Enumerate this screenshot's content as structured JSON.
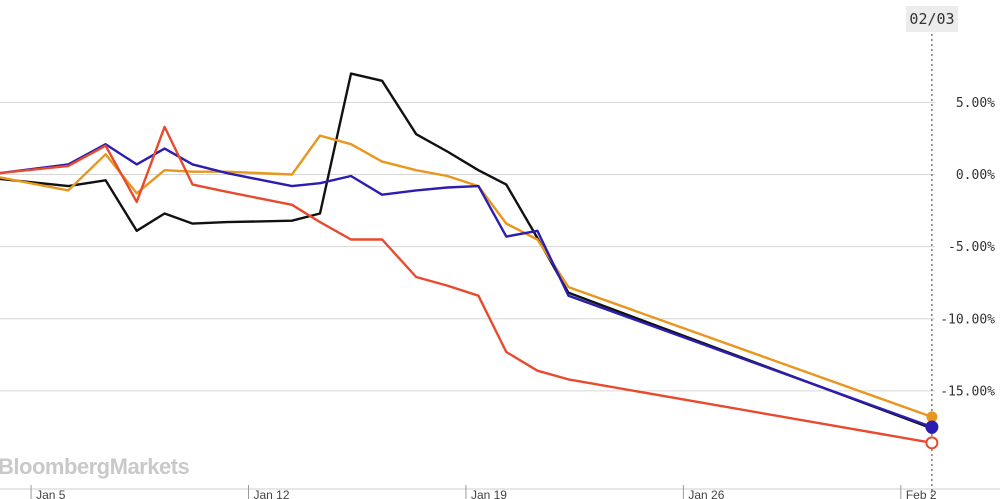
{
  "brand": {
    "logo_text": "BloombergMarkets"
  },
  "date_badge": "02/03",
  "chart_data": {
    "type": "line",
    "y_axis": {
      "ticks": [
        5,
        0,
        -5,
        -10,
        -15
      ],
      "tick_labels": [
        "5.00%",
        "0.00%",
        "-5.00%",
        "-10.00%",
        "-15.00%"
      ],
      "ylim": [
        -21.8,
        12.1
      ],
      "position": "right",
      "grid": true
    },
    "x_axis": {
      "tick_labels": [
        "Jan 5",
        "Jan 12",
        "Jan 19",
        "Jan 26",
        "Feb 2"
      ],
      "tick_positions": [
        5,
        12,
        19,
        26,
        33
      ],
      "xlim": [
        4,
        34.1
      ]
    },
    "x": [
      4,
      6.2,
      7.4,
      8.4,
      9.3,
      10.2,
      11.3,
      13.4,
      14.3,
      15.3,
      16.3,
      17.4,
      18.4,
      19.4,
      20.3,
      21.3,
      22.3,
      34
    ],
    "series": [
      {
        "color": "#111111",
        "values": [
          -0.3,
          -0.8,
          -0.4,
          -3.9,
          -2.7,
          -3.4,
          -3.3,
          -3.2,
          -2.7,
          7.0,
          6.5,
          2.8,
          1.6,
          0.3,
          -0.7,
          -4.4,
          -8.2,
          -17.6
        ]
      },
      {
        "color": "#2b1db2",
        "values": [
          0.1,
          0.7,
          2.1,
          0.7,
          1.8,
          0.7,
          0.1,
          -0.8,
          -0.6,
          -0.1,
          -1.4,
          -1.1,
          -0.9,
          -0.8,
          -4.3,
          -3.9,
          -8.4,
          -17.5
        ]
      },
      {
        "color": "#e8961e",
        "values": [
          -0.2,
          -1.1,
          1.4,
          -1.3,
          0.3,
          0.2,
          0.2,
          0.0,
          2.7,
          2.1,
          0.9,
          0.3,
          -0.1,
          -0.8,
          -3.4,
          -4.5,
          -7.8,
          -16.8
        ]
      },
      {
        "color": "#e84a2e",
        "values": [
          0.1,
          0.6,
          2.0,
          -1.9,
          3.3,
          -0.7,
          -1.2,
          -2.1,
          -3.3,
          -4.5,
          -4.5,
          -7.1,
          -7.7,
          -8.4,
          -12.3,
          -13.6,
          -14.2,
          -18.6
        ]
      }
    ]
  }
}
